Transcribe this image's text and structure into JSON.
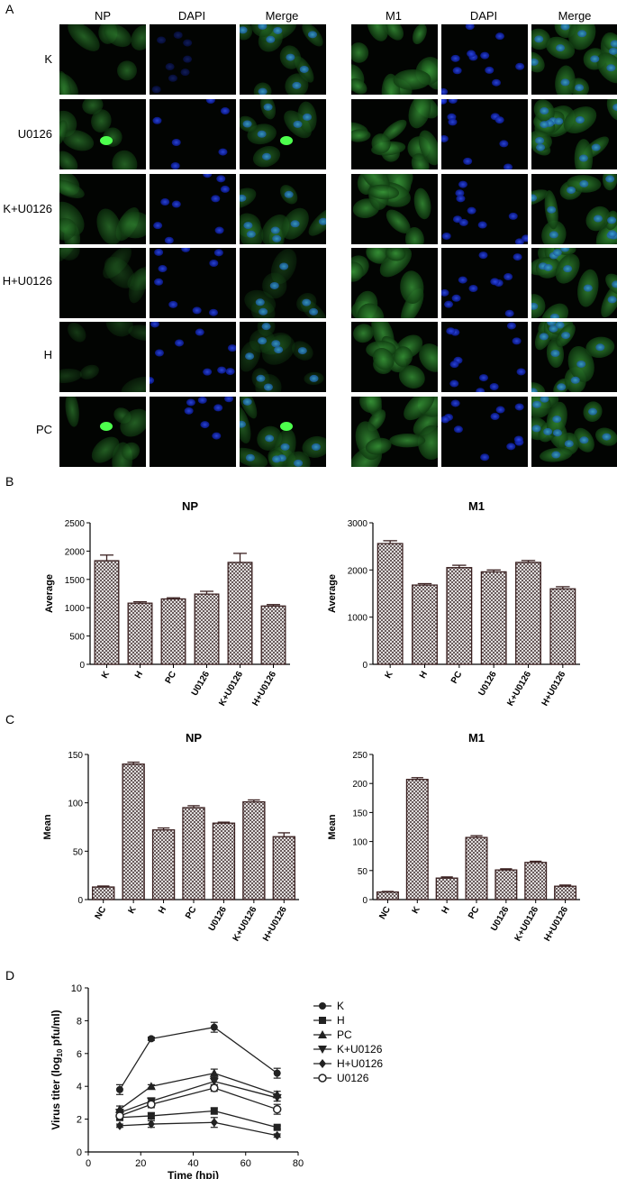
{
  "panel_letters": {
    "A": "A",
    "B": "B",
    "C": "C",
    "D": "D"
  },
  "panel_a": {
    "left_headers": [
      "NP",
      "DAPI",
      "Merge"
    ],
    "right_headers": [
      "M1",
      "DAPI",
      "Merge"
    ],
    "rows": [
      "K",
      "U0126",
      "K+U0126",
      "H+U0126",
      "H",
      "PC"
    ],
    "colors": {
      "green": "#2e8b2e",
      "blue": "#1a2fd0",
      "dark": "#020402"
    }
  },
  "chart_data": [
    {
      "id": "B-NP",
      "type": "bar",
      "title": "NP",
      "ylabel": "Average",
      "categories": [
        "K",
        "H",
        "PC",
        "U0126",
        "K+U0126",
        "H+U0126"
      ],
      "values": [
        1830,
        1080,
        1155,
        1240,
        1800,
        1030
      ],
      "errors": [
        100,
        25,
        20,
        50,
        160,
        25
      ],
      "ylim": [
        0,
        2500
      ],
      "yticks": [
        0,
        500,
        1000,
        1500,
        2000,
        2500
      ]
    },
    {
      "id": "B-M1",
      "type": "bar",
      "title": "M1",
      "ylabel": "Average",
      "categories": [
        "K",
        "H",
        "PC",
        "U0126",
        "K+U0126",
        "H+U0126"
      ],
      "values": [
        2560,
        1680,
        2050,
        1960,
        2160,
        1600
      ],
      "errors": [
        60,
        30,
        50,
        40,
        40,
        45
      ],
      "ylim": [
        0,
        3000
      ],
      "yticks": [
        0,
        1000,
        2000,
        3000
      ]
    },
    {
      "id": "C-NP",
      "type": "bar",
      "title": "NP",
      "ylabel": "Mean",
      "categories": [
        "NC",
        "K",
        "H",
        "PC",
        "U0126",
        "K+U0126",
        "H+U0126"
      ],
      "values": [
        13,
        140,
        72,
        95,
        79,
        101,
        65
      ],
      "errors": [
        1,
        2,
        2,
        2,
        1,
        2,
        4
      ],
      "ylim": [
        0,
        150
      ],
      "yticks": [
        0,
        50,
        100,
        150
      ]
    },
    {
      "id": "C-M1",
      "type": "bar",
      "title": "M1",
      "ylabel": "Mean",
      "categories": [
        "NC",
        "K",
        "H",
        "PC",
        "U0126",
        "K+U0126",
        "H+U0126"
      ],
      "values": [
        13,
        207,
        37,
        107,
        51,
        64,
        23
      ],
      "errors": [
        1,
        3,
        2,
        3,
        2,
        2,
        2
      ],
      "ylim": [
        0,
        250
      ],
      "yticks": [
        0,
        50,
        100,
        150,
        200,
        250
      ]
    },
    {
      "id": "D",
      "type": "line",
      "xlabel": "Time (hpi)",
      "ylabel_main": "Virus titer (log",
      "ylabel_sub": "10",
      "ylabel_tail": " pfu/ml)",
      "xlim": [
        0,
        80
      ],
      "xticks": [
        0,
        20,
        40,
        60,
        80
      ],
      "ylim": [
        0,
        10
      ],
      "yticks": [
        0,
        2,
        4,
        6,
        8,
        10
      ],
      "x": [
        12,
        24,
        48,
        72
      ],
      "series": [
        {
          "name": "K",
          "marker": "circle",
          "values": [
            3.8,
            6.9,
            7.6,
            4.8
          ],
          "errors": [
            0.3,
            0.1,
            0.3,
            0.3
          ]
        },
        {
          "name": "H",
          "marker": "square",
          "values": [
            2.1,
            2.2,
            2.5,
            1.5
          ],
          "errors": [
            0.15,
            0.2,
            0.2,
            0.1
          ]
        },
        {
          "name": "PC",
          "marker": "triangle-up",
          "values": [
            2.6,
            4.0,
            4.8,
            3.5
          ],
          "errors": [
            0.2,
            0.1,
            0.25,
            0.2
          ]
        },
        {
          "name": "K+U0126",
          "marker": "triangle-down",
          "values": [
            2.4,
            3.1,
            4.3,
            3.3
          ],
          "errors": [
            0.2,
            0.2,
            0.2,
            0.2
          ]
        },
        {
          "name": "H+U0126",
          "marker": "diamond",
          "values": [
            1.6,
            1.7,
            1.8,
            1.0
          ],
          "errors": [
            0.1,
            0.2,
            0.3,
            0.1
          ]
        },
        {
          "name": "U0126",
          "marker": "circle-open",
          "values": [
            2.2,
            2.9,
            3.9,
            2.6
          ],
          "errors": [
            0.2,
            0.2,
            0.2,
            0.3
          ]
        }
      ]
    }
  ]
}
